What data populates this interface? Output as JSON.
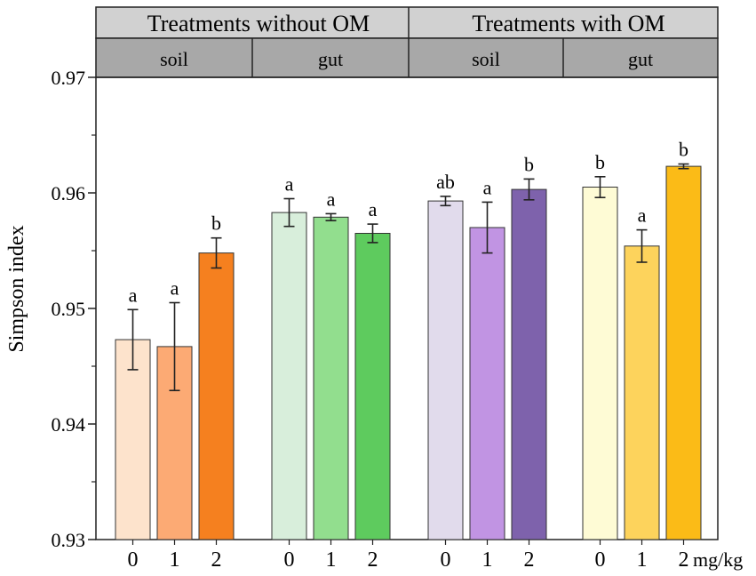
{
  "chart_data": {
    "type": "bar",
    "title": "",
    "ylabel": "Simpson index",
    "xlabel": "",
    "x_unit": "mg/kg",
    "ylim": [
      0.93,
      0.97
    ],
    "yticks": [
      "0.93",
      "0.94",
      "0.95",
      "0.96",
      "0.97"
    ],
    "header_top": [
      "Treatments without OM",
      "Treatments with OM"
    ],
    "header_bottom": [
      "soil",
      "gut",
      "soil",
      "gut"
    ],
    "groups": [
      {
        "treatment": "Treatments without OM",
        "source": "soil",
        "doses": [
          "0",
          "1",
          "2"
        ],
        "values": [
          0.9473,
          0.9467,
          0.9548
        ],
        "errors": [
          0.0026,
          0.0038,
          0.0013
        ],
        "letters": [
          "a",
          "a",
          "b"
        ],
        "colors": [
          "#fde3cc",
          "#fcaa74",
          "#f5801f"
        ]
      },
      {
        "treatment": "Treatments without OM",
        "source": "gut",
        "doses": [
          "0",
          "1",
          "2"
        ],
        "values": [
          0.9583,
          0.9579,
          0.9565
        ],
        "errors": [
          0.0012,
          0.0003,
          0.0008
        ],
        "letters": [
          "a",
          "a",
          "a"
        ],
        "colors": [
          "#d8eedb",
          "#92de8e",
          "#5ecb5e"
        ]
      },
      {
        "treatment": "Treatments with OM",
        "source": "soil",
        "doses": [
          "0",
          "1",
          "2"
        ],
        "values": [
          0.9593,
          0.957,
          0.9603
        ],
        "errors": [
          0.0004,
          0.0022,
          0.0009
        ],
        "letters": [
          "ab",
          "a",
          "b"
        ],
        "colors": [
          "#e1dbec",
          "#c194e3",
          "#7e62ac"
        ]
      },
      {
        "treatment": "Treatments with OM",
        "source": "gut",
        "doses": [
          "0",
          "1",
          "2"
        ],
        "values": [
          0.9605,
          0.9554,
          0.9623
        ],
        "errors": [
          0.0009,
          0.0014,
          0.0002
        ],
        "letters": [
          "b",
          "a",
          "b"
        ],
        "colors": [
          "#fefbd5",
          "#fdd35c",
          "#fbbb17"
        ]
      }
    ]
  }
}
